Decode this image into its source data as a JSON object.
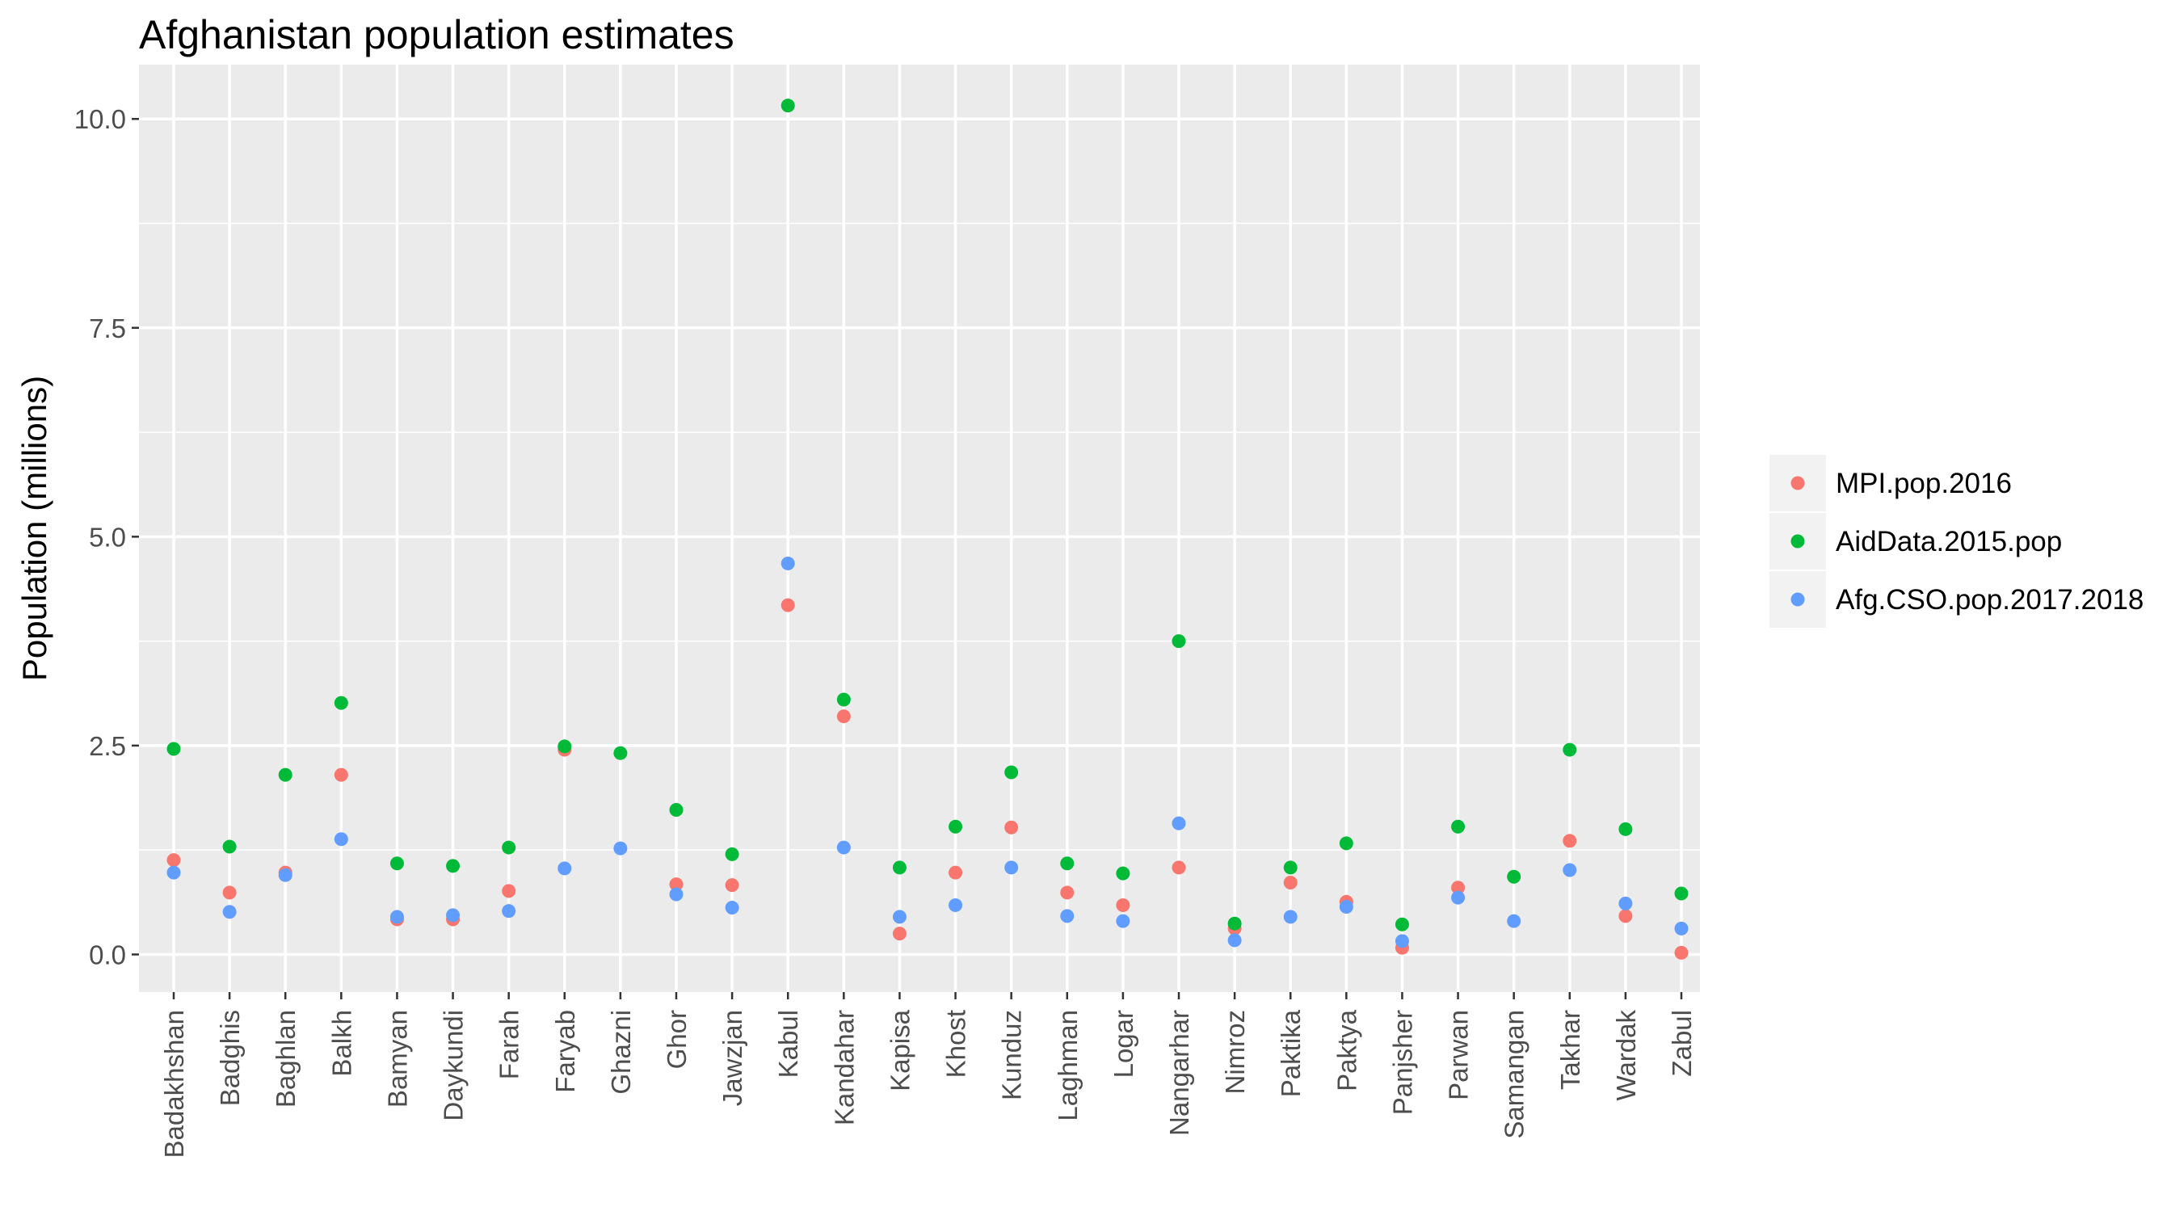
{
  "chart_data": {
    "type": "scatter",
    "title": "Afghanistan population estimates",
    "xlabel": "",
    "ylabel": "Population (millions)",
    "ylim": [
      -0.45,
      10.65
    ],
    "yticks": [
      0.0,
      2.5,
      5.0,
      7.5,
      10.0
    ],
    "ytick_labels": [
      "0.0",
      "2.5",
      "5.0",
      "7.5",
      "10.0"
    ],
    "grid": true,
    "legend_position": "right",
    "categories": [
      "Badakhshan",
      "Badghis",
      "Baghlan",
      "Balkh",
      "Bamyan",
      "Daykundi",
      "Farah",
      "Faryab",
      "Ghazni",
      "Ghor",
      "Jawzjan",
      "Kabul",
      "Kandahar",
      "Kapisa",
      "Khost",
      "Kunduz",
      "Laghman",
      "Logar",
      "Nangarhar",
      "Nimroz",
      "Paktika",
      "Paktya",
      "Panjsher",
      "Parwan",
      "Samangan",
      "Takhar",
      "Wardak",
      "Zabul"
    ],
    "series": [
      {
        "name": "MPI.pop.2016",
        "color": "#F8766D",
        "values": [
          1.13,
          0.74,
          0.98,
          2.15,
          0.42,
          0.42,
          0.76,
          2.45,
          null,
          0.84,
          0.83,
          4.18,
          2.85,
          0.25,
          0.98,
          1.52,
          0.74,
          0.59,
          1.04,
          0.31,
          0.86,
          0.63,
          0.08,
          0.8,
          null,
          1.36,
          0.46,
          0.02
        ]
      },
      {
        "name": "AidData.2015.pop",
        "color": "#00BA38",
        "values": [
          2.46,
          1.29,
          2.15,
          3.01,
          1.09,
          1.06,
          1.28,
          2.49,
          2.41,
          1.73,
          1.2,
          10.16,
          3.05,
          1.04,
          1.53,
          2.18,
          1.09,
          0.97,
          3.75,
          0.37,
          1.04,
          1.33,
          0.36,
          1.53,
          0.93,
          2.45,
          1.5,
          0.73
        ]
      },
      {
        "name": "Afg.CSO.pop.2017.2018",
        "color": "#619CFF",
        "values": [
          0.98,
          0.51,
          0.95,
          1.38,
          0.45,
          0.47,
          0.52,
          1.03,
          1.27,
          0.72,
          0.56,
          4.68,
          1.28,
          0.45,
          0.59,
          1.04,
          0.46,
          0.4,
          1.57,
          0.17,
          0.45,
          0.57,
          0.16,
          0.68,
          0.4,
          1.01,
          0.61,
          0.31
        ]
      }
    ]
  }
}
